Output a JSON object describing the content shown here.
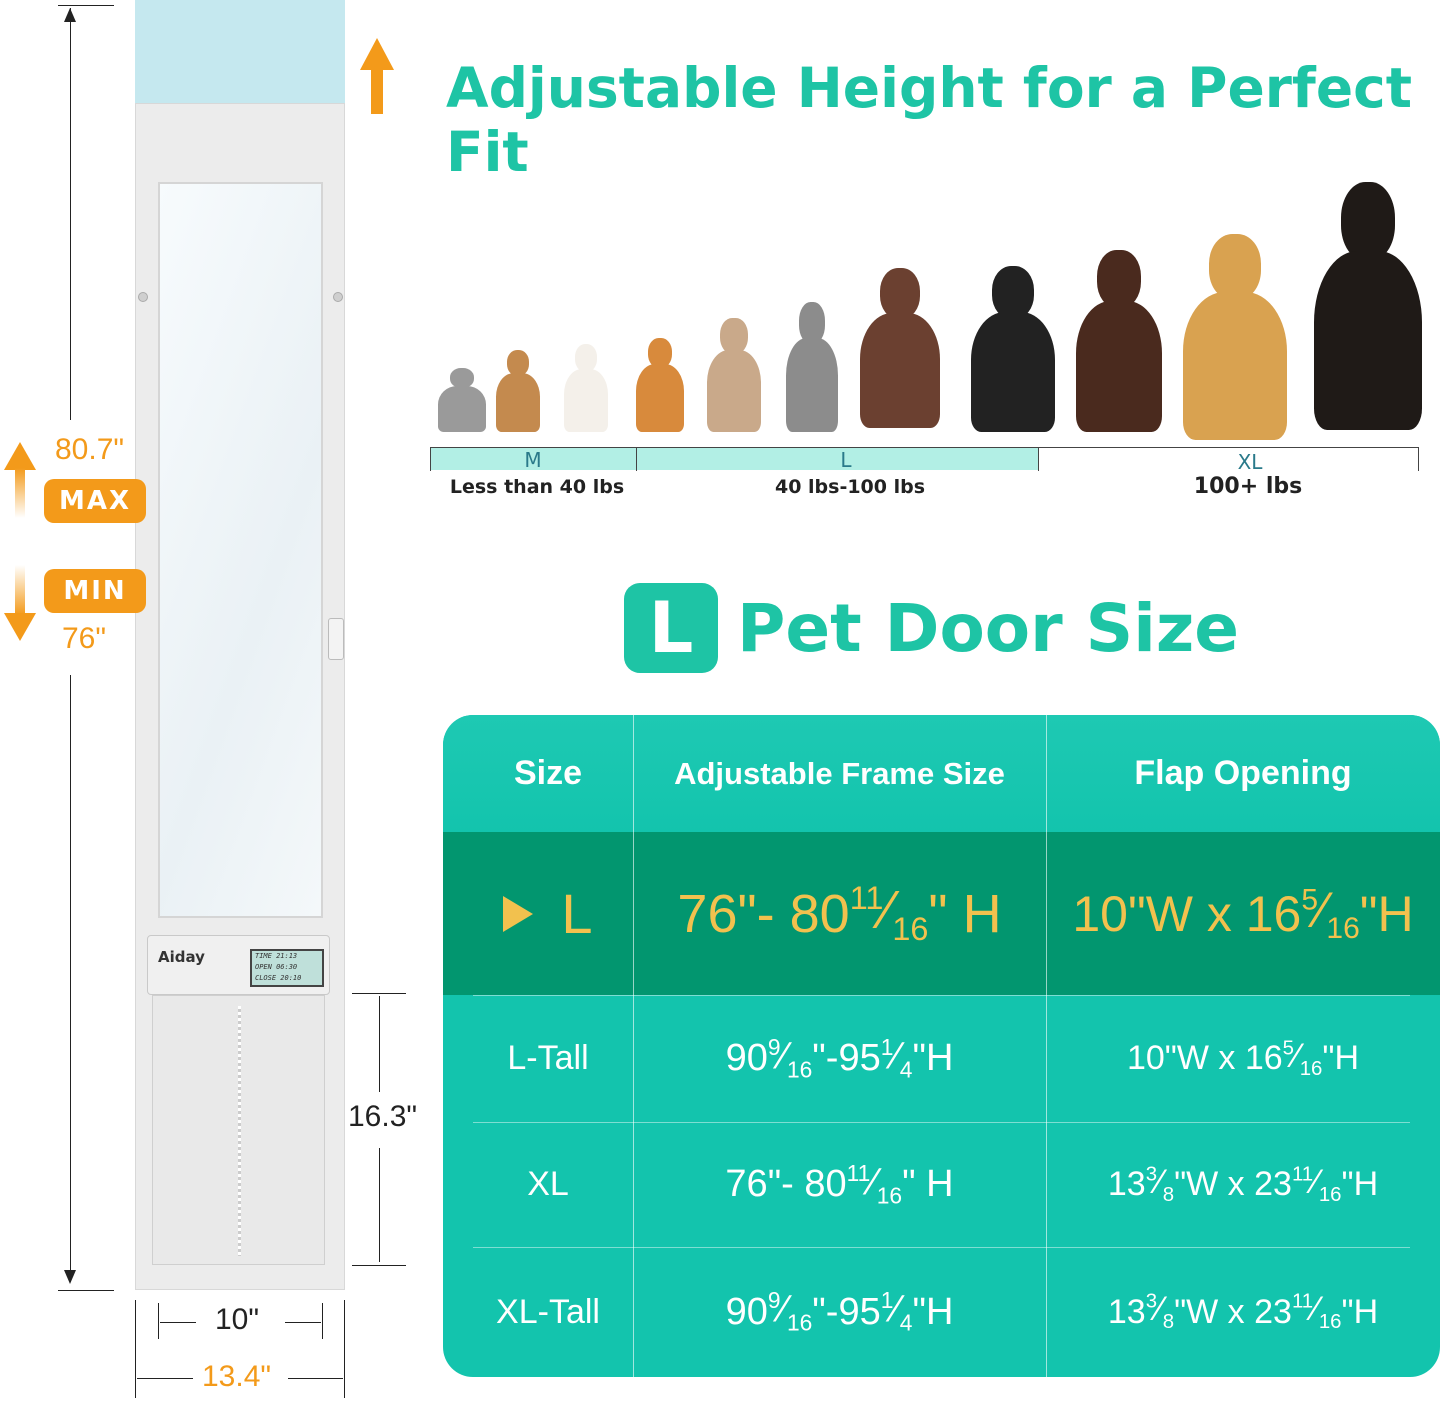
{
  "heading": "Adjustable Height for a Perfect Fit",
  "door": {
    "brand": "Aiday",
    "lcd": [
      "TIME  21:13",
      "OPEN  06:30",
      "CLOSE 20:10"
    ],
    "dimensions": {
      "max_height": "80.7\"",
      "max_label": "MAX",
      "min_label": "MIN",
      "min_height": "76\"",
      "flap_height": "16.3\"",
      "flap_width": "10\"",
      "frame_width": "13.4\""
    }
  },
  "weight_scale": {
    "segments": [
      {
        "size": "M",
        "weight": "Less than 40 lbs"
      },
      {
        "size": "L",
        "weight": "40 lbs-100 lbs"
      },
      {
        "size": "XL",
        "weight": "100+ lbs"
      }
    ]
  },
  "size_title": {
    "badge": "L",
    "text": "Pet Door Size"
  },
  "table": {
    "headers": [
      "Size",
      "Adjustable Frame Size",
      "Flap Opening"
    ],
    "rows": [
      {
        "size": "L",
        "selected": true,
        "frame": {
          "a": "76\"- 80",
          "num": "11",
          "den": "16",
          "b": "\" H"
        },
        "flap": {
          "a": "10\"W x 16 ",
          "num": "5",
          "den": "16",
          "b": "\"H",
          "c": "",
          "num2": "",
          "den2": "",
          "d": ""
        }
      },
      {
        "size": "L-Tall",
        "selected": false,
        "frame": {
          "a": "90 ",
          "num": "9",
          "den": "16",
          "b": "\"-95",
          "num2": "1",
          "den2": "4",
          "c": "\"H"
        },
        "flap": {
          "a": "10\"W x 16 ",
          "num": "5",
          "den": "16",
          "b": "\"H"
        }
      },
      {
        "size": "XL",
        "selected": false,
        "frame": {
          "a": "76\"- 80",
          "num": "11",
          "den": "16",
          "b": "\" H"
        },
        "flap": {
          "a": "13 ",
          "num": "3",
          "den": "8",
          "b": "\"W x 23 ",
          "num2": "11",
          "den2": "16",
          "c": "\"H"
        }
      },
      {
        "size": "XL-Tall",
        "selected": false,
        "frame": {
          "a": "90 ",
          "num": "9",
          "den": "16",
          "b": "\"-95",
          "num2": "1",
          "den2": "4",
          "c": "\"H"
        },
        "flap": {
          "a": "13 ",
          "num": "3",
          "den": "8",
          "b": "\"W x 23 ",
          "num2": "11",
          "den2": "16",
          "c": "\"H"
        }
      }
    ]
  },
  "colors": {
    "teal": "#13c4ad",
    "selected_row": "#02966f",
    "gold": "#f2c14e",
    "orange": "#f39a1a",
    "heading": "#1ec4a5"
  }
}
